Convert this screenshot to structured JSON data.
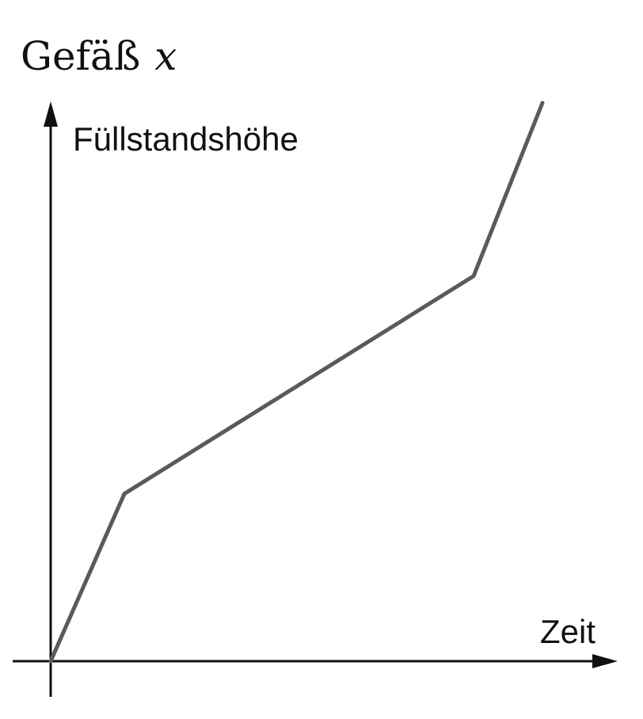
{
  "chart_data": {
    "type": "line",
    "title": {
      "name": "Gefäß",
      "variable": "x"
    },
    "xlabel": "Zeit",
    "ylabel": "Füllstandshöhe",
    "xlim": [
      0,
      1
    ],
    "ylim": [
      0,
      1
    ],
    "grid": false,
    "ticks": false,
    "series": [
      {
        "x": [
          0,
          0.15,
          0.86,
          1.0
        ],
        "y": [
          0,
          0.3,
          0.69,
          1.0
        ]
      }
    ]
  }
}
